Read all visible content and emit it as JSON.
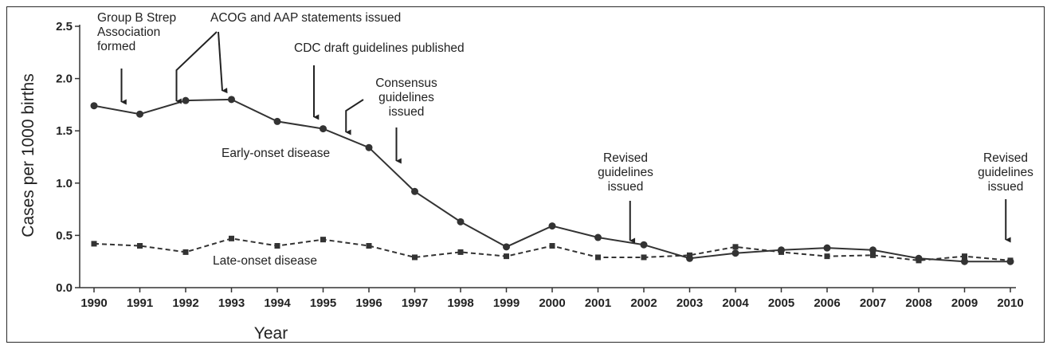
{
  "chart_data": {
    "type": "line",
    "title": "",
    "xlabel": "Year",
    "ylabel": "Cases per 1000 births",
    "ylim": [
      0,
      2.5
    ],
    "yticks": [
      "0.0",
      "0.5",
      "1.0",
      "1.5",
      "2.0",
      "2.5"
    ],
    "categories": [
      "1990",
      "1991",
      "1992",
      "1993",
      "1994",
      "1995",
      "1996",
      "1997",
      "1998",
      "1999",
      "2000",
      "2001",
      "2002",
      "2003",
      "2004",
      "2005",
      "2006",
      "2007",
      "2008",
      "2009",
      "2010"
    ],
    "series": [
      {
        "name": "Early-onset disease",
        "style": "solid",
        "marker": "circle",
        "values": [
          1.74,
          1.66,
          1.79,
          1.8,
          1.59,
          1.52,
          1.34,
          0.92,
          0.63,
          0.39,
          0.59,
          0.48,
          0.41,
          0.28,
          0.33,
          0.36,
          0.38,
          0.36,
          0.28,
          0.25,
          0.25
        ]
      },
      {
        "name": "Late-onset disease",
        "style": "dashed",
        "marker": "square",
        "values": [
          0.42,
          0.4,
          0.34,
          0.47,
          0.4,
          0.46,
          0.4,
          0.29,
          0.34,
          0.3,
          0.4,
          0.29,
          0.29,
          0.31,
          0.39,
          0.34,
          0.3,
          0.31,
          0.26,
          0.3,
          0.26
        ]
      }
    ],
    "annotations": [
      {
        "lines": [
          "Group B Strep",
          "Association",
          "formed"
        ],
        "x": 1990.6
      },
      {
        "lines": [
          "ACOG and AAP statements issued"
        ],
        "x": [
          1991.8,
          1992.8
        ]
      },
      {
        "lines": [
          "CDC draft guidelines published"
        ],
        "x": 1994.8
      },
      {
        "lines": [
          "Consensus",
          "guidelines",
          "issued"
        ],
        "x": [
          1995.5,
          1996.6
        ]
      },
      {
        "lines": [
          "Revised",
          "guidelines",
          "issued"
        ],
        "x": 2001.7
      },
      {
        "lines": [
          "Revised",
          "guidelines",
          "issued"
        ],
        "x": 2009.9
      }
    ],
    "grid": false,
    "colors": {
      "line": "#333333",
      "text": "#222222"
    }
  }
}
